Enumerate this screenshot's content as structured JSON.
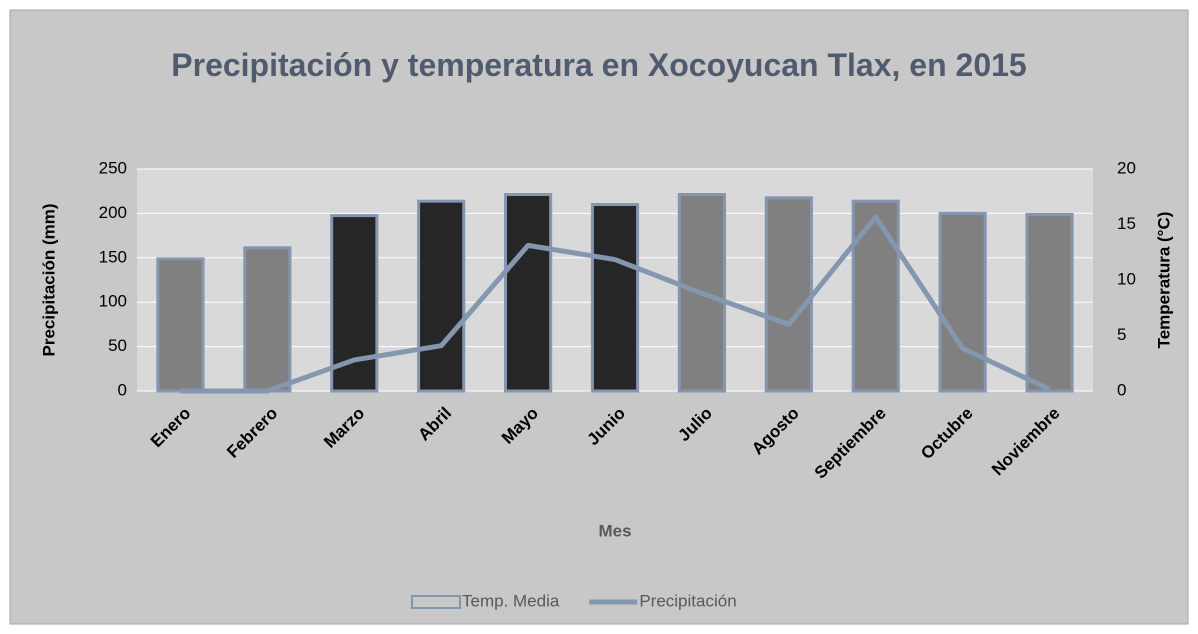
{
  "chart_data": {
    "type": "bar_line",
    "title": "Precipitación y temperatura en Xocoyucan Tlax, en 2015",
    "xlabel": "Mes",
    "ylabel": "Precipitación (mm)",
    "y2label": "Temperatura (°C)",
    "categories": [
      "Enero",
      "Febrero",
      "Marzo",
      "Abril",
      "Mayo",
      "Junio",
      "Julio",
      "Agosto",
      "Septiembre",
      "Octubre",
      "Noviembre"
    ],
    "series": [
      {
        "name": "Temp. Media",
        "type": "bar",
        "axis": "y2",
        "edgecolor": "#8496b0",
        "colors": [
          "#808080",
          "#808080",
          "#262626",
          "#262626",
          "#262626",
          "#262626",
          "#808080",
          "#808080",
          "#808080",
          "#808080",
          "#808080"
        ],
        "values": [
          11.9,
          12.9,
          15.8,
          17.1,
          17.7,
          16.8,
          17.7,
          17.4,
          17.1,
          16.0,
          15.9
        ]
      },
      {
        "name": "Precipitación",
        "type": "line",
        "axis": "y",
        "color": "#8497b0",
        "values": [
          0,
          0,
          35,
          51,
          164,
          148,
          110,
          75,
          196,
          48,
          2
        ]
      }
    ],
    "ylim": [
      0,
      250
    ],
    "yticks": [
      0,
      50,
      100,
      150,
      200,
      250
    ],
    "y2lim": [
      0,
      20
    ],
    "y2ticks": [
      0,
      5,
      10,
      15,
      20
    ],
    "grid": true,
    "legend": "bottom"
  }
}
